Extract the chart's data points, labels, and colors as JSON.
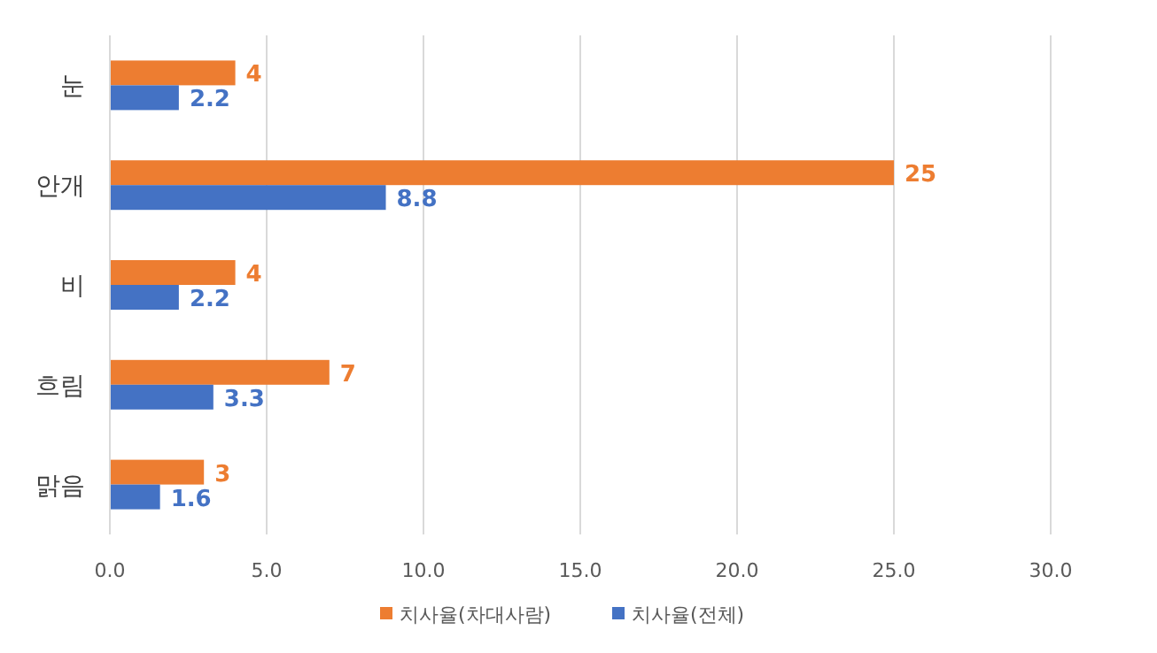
{
  "chart_data": {
    "type": "bar",
    "orientation": "horizontal",
    "categories": [
      "눈",
      "안개",
      "비",
      "흐림",
      "맑음"
    ],
    "series": [
      {
        "name": "치사율(차대사람)",
        "color": "#ed7d31",
        "values": [
          4,
          25,
          4,
          7,
          3
        ]
      },
      {
        "name": "치사율(전체)",
        "color": "#4472c4",
        "values": [
          2.2,
          8.8,
          2.2,
          3.3,
          1.6
        ]
      }
    ],
    "xlim": [
      0,
      30
    ],
    "xticks": [
      {
        "value": 0,
        "label": "0.0"
      },
      {
        "value": 5,
        "label": "5.0"
      },
      {
        "value": 10,
        "label": "10.0"
      },
      {
        "value": 15,
        "label": "15.0"
      },
      {
        "value": 20,
        "label": "20.0"
      },
      {
        "value": 25,
        "label": "25.0"
      },
      {
        "value": 30,
        "label": "30.0"
      }
    ],
    "grid": "x",
    "legend": "bottom",
    "data_labels": true
  }
}
